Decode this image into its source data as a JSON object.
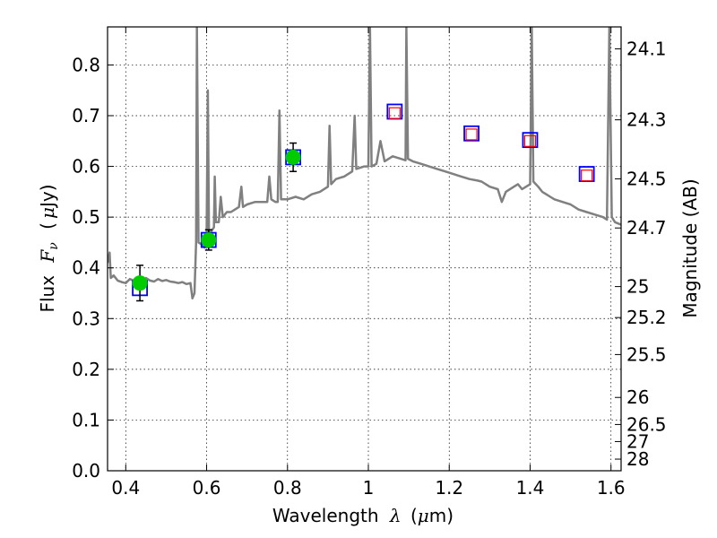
{
  "chart_data": {
    "type": "scatter",
    "xlabel_prefix": "Wavelength",
    "xlabel_symbol": "λ",
    "xlabel_unit_open": "(",
    "xlabel_unit_mu": "μ",
    "xlabel_unit_rest": "m)",
    "ylabel_prefix": "Flux",
    "ylabel_symbol": "F",
    "ylabel_subscript": "ν",
    "ylabel_unit_open": "(",
    "ylabel_unit_mu": "μ",
    "ylabel_unit_rest": "Jy)",
    "y2label": "Magnitude (AB)",
    "xlim": [
      0.355,
      1.625
    ],
    "ylim": [
      0.0,
      0.875
    ],
    "grid": true,
    "x_ticks": [
      0.4,
      0.6,
      0.8,
      1.0,
      1.2,
      1.4,
      1.6
    ],
    "x_tick_labels": [
      "0.4",
      "0.6",
      "0.8",
      "1",
      "1.2",
      "1.4",
      "1.6"
    ],
    "y_ticks": [
      0.0,
      0.1,
      0.2,
      0.3,
      0.4,
      0.5,
      0.6,
      0.7,
      0.8
    ],
    "y_tick_labels": [
      "0.0",
      "0.1",
      "0.2",
      "0.3",
      "0.4",
      "0.5",
      "0.6",
      "0.7",
      "0.8"
    ],
    "mag_ticks": [
      "24.1",
      "24.3",
      "24.5",
      "24.7",
      "25",
      "25.2",
      "25.5",
      "26",
      "26.5",
      "27",
      "28"
    ],
    "series": [
      {
        "kind": "line",
        "color": "#808080",
        "points": [
          [
            0.355,
            0.41
          ],
          [
            0.36,
            0.43
          ],
          [
            0.363,
            0.38
          ],
          [
            0.37,
            0.385
          ],
          [
            0.38,
            0.375
          ],
          [
            0.39,
            0.372
          ],
          [
            0.4,
            0.37
          ],
          [
            0.41,
            0.378
          ],
          [
            0.42,
            0.375
          ],
          [
            0.43,
            0.376
          ],
          [
            0.44,
            0.37
          ],
          [
            0.45,
            0.38
          ],
          [
            0.46,
            0.375
          ],
          [
            0.47,
            0.373
          ],
          [
            0.48,
            0.378
          ],
          [
            0.49,
            0.374
          ],
          [
            0.5,
            0.376
          ],
          [
            0.51,
            0.373
          ],
          [
            0.52,
            0.372
          ],
          [
            0.53,
            0.37
          ],
          [
            0.54,
            0.372
          ],
          [
            0.55,
            0.368
          ],
          [
            0.56,
            0.37
          ],
          [
            0.565,
            0.34
          ],
          [
            0.57,
            0.35
          ],
          [
            0.574,
            0.45
          ],
          [
            0.576,
            0.875
          ],
          [
            0.58,
            0.45
          ],
          [
            0.59,
            0.445
          ],
          [
            0.595,
            0.44
          ],
          [
            0.6,
            0.46
          ],
          [
            0.603,
            0.75
          ],
          [
            0.606,
            0.46
          ],
          [
            0.61,
            0.47
          ],
          [
            0.618,
            0.48
          ],
          [
            0.62,
            0.58
          ],
          [
            0.623,
            0.49
          ],
          [
            0.63,
            0.49
          ],
          [
            0.635,
            0.54
          ],
          [
            0.64,
            0.5
          ],
          [
            0.65,
            0.51
          ],
          [
            0.66,
            0.51
          ],
          [
            0.67,
            0.515
          ],
          [
            0.68,
            0.52
          ],
          [
            0.686,
            0.56
          ],
          [
            0.69,
            0.52
          ],
          [
            0.7,
            0.525
          ],
          [
            0.72,
            0.53
          ],
          [
            0.74,
            0.53
          ],
          [
            0.75,
            0.53
          ],
          [
            0.755,
            0.58
          ],
          [
            0.76,
            0.535
          ],
          [
            0.77,
            0.53
          ],
          [
            0.776,
            0.53
          ],
          [
            0.78,
            0.71
          ],
          [
            0.784,
            0.535
          ],
          [
            0.8,
            0.535
          ],
          [
            0.82,
            0.54
          ],
          [
            0.84,
            0.535
          ],
          [
            0.86,
            0.545
          ],
          [
            0.88,
            0.55
          ],
          [
            0.9,
            0.56
          ],
          [
            0.904,
            0.68
          ],
          [
            0.908,
            0.565
          ],
          [
            0.92,
            0.575
          ],
          [
            0.94,
            0.58
          ],
          [
            0.96,
            0.59
          ],
          [
            0.966,
            0.7
          ],
          [
            0.97,
            0.595
          ],
          [
            0.99,
            0.6
          ],
          [
            1.0,
            0.6
          ],
          [
            1.004,
            0.875
          ],
          [
            1.008,
            0.6
          ],
          [
            1.02,
            0.605
          ],
          [
            1.03,
            0.65
          ],
          [
            1.04,
            0.61
          ],
          [
            1.06,
            0.62
          ],
          [
            1.08,
            0.615
          ],
          [
            1.092,
            0.612
          ],
          [
            1.094,
            0.875
          ],
          [
            1.098,
            0.615
          ],
          [
            1.11,
            0.61
          ],
          [
            1.13,
            0.605
          ],
          [
            1.15,
            0.6
          ],
          [
            1.17,
            0.595
          ],
          [
            1.19,
            0.59
          ],
          [
            1.21,
            0.585
          ],
          [
            1.23,
            0.58
          ],
          [
            1.25,
            0.575
          ],
          [
            1.27,
            0.572
          ],
          [
            1.28,
            0.57
          ],
          [
            1.3,
            0.56
          ],
          [
            1.32,
            0.555
          ],
          [
            1.33,
            0.53
          ],
          [
            1.34,
            0.55
          ],
          [
            1.36,
            0.56
          ],
          [
            1.37,
            0.565
          ],
          [
            1.38,
            0.555
          ],
          [
            1.39,
            0.56
          ],
          [
            1.4,
            0.565
          ],
          [
            1.404,
            0.875
          ],
          [
            1.408,
            0.57
          ],
          [
            1.42,
            0.56
          ],
          [
            1.43,
            0.55
          ],
          [
            1.44,
            0.545
          ],
          [
            1.45,
            0.54
          ],
          [
            1.46,
            0.535
          ],
          [
            1.48,
            0.53
          ],
          [
            1.5,
            0.525
          ],
          [
            1.52,
            0.515
          ],
          [
            1.54,
            0.51
          ],
          [
            1.56,
            0.505
          ],
          [
            1.58,
            0.5
          ],
          [
            1.59,
            0.495
          ],
          [
            1.596,
            0.875
          ],
          [
            1.602,
            0.5
          ],
          [
            1.61,
            0.49
          ],
          [
            1.625,
            0.485
          ]
        ]
      },
      {
        "kind": "model-photometry",
        "edge_color": "#0000ff",
        "points": [
          [
            0.435,
            0.36
          ],
          [
            0.605,
            0.455
          ],
          [
            0.814,
            0.618
          ],
          [
            1.065,
            0.708
          ],
          [
            1.255,
            0.665
          ],
          [
            1.4,
            0.652
          ],
          [
            1.54,
            0.585
          ]
        ]
      },
      {
        "kind": "upper-limit-photometry",
        "edge_color": "#ff0000",
        "points": [
          [
            1.065,
            0.705
          ],
          [
            1.255,
            0.663
          ],
          [
            1.4,
            0.65
          ],
          [
            1.54,
            0.582
          ]
        ]
      },
      {
        "kind": "observed-photometry",
        "color": "#00cc00",
        "points": [
          {
            "x": 0.435,
            "y": 0.37,
            "yerr": 0.035
          },
          {
            "x": 0.605,
            "y": 0.455,
            "yerr": 0.02
          },
          {
            "x": 0.814,
            "y": 0.618,
            "yerr": 0.028
          }
        ]
      }
    ]
  }
}
